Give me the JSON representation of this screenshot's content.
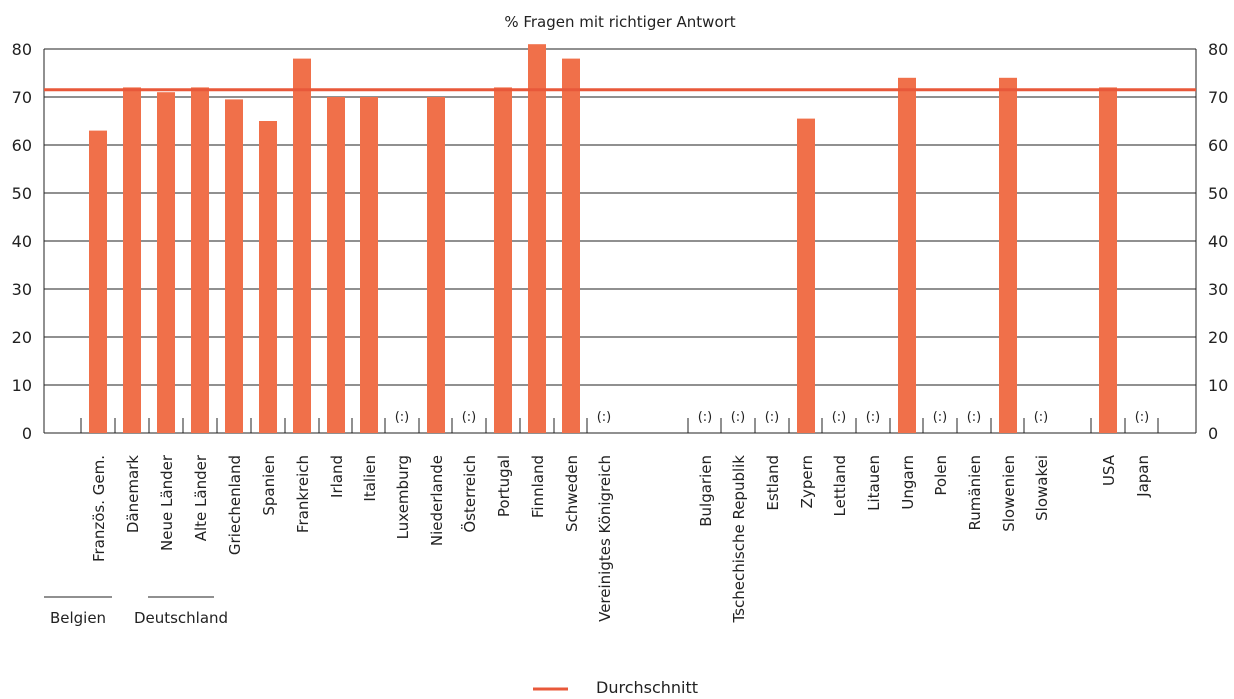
{
  "chart_data": {
    "type": "bar",
    "title": "% Fragen mit richtiger Antwort",
    "ylim": [
      0,
      80
    ],
    "yticks": [
      0,
      10,
      20,
      30,
      40,
      50,
      60,
      70,
      80
    ],
    "grid": true,
    "bar_color": "#f0704a",
    "line_color": "#e8583a",
    "average": 71.5,
    "missing_label": "(:)",
    "groups": [
      {
        "label": "Belgien",
        "members": [
          "Französ. Gem."
        ]
      },
      {
        "label": "Deutschland",
        "members": [
          "Neue Länder",
          "Alte Länder"
        ]
      }
    ],
    "categories": [
      "Französ. Gem.",
      "Dänemark",
      "Neue Länder",
      "Alte Länder",
      "Griechenland",
      "Spanien",
      "Frankreich",
      "Irland",
      "Italien",
      "Luxemburg",
      "Niederlande",
      "Österreich",
      "Portugal",
      "Finnland",
      "Schweden",
      "Vereinigtes Königreich",
      "Bulgarien",
      "Tschechische Republik",
      "Estland",
      "Zypern",
      "Lettland",
      "Litauen",
      "Ungarn",
      "Polen",
      "Rumänien",
      "Slowenien",
      "Slowakei",
      "USA",
      "Japan"
    ],
    "values": [
      63,
      72,
      71,
      72,
      69.5,
      65,
      78,
      70,
      70,
      null,
      70,
      null,
      72,
      81,
      78,
      null,
      null,
      null,
      null,
      65.5,
      null,
      null,
      74,
      null,
      null,
      74,
      null,
      72,
      null
    ],
    "legend": [
      {
        "name": "Durchschnitt"
      }
    ]
  }
}
